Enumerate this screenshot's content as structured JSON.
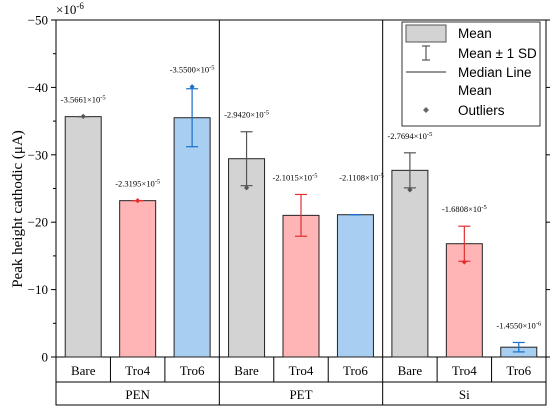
{
  "chart_data": {
    "type": "bar",
    "multiplier_label": "×10",
    "multiplier_exp": "-6",
    "ylabel": "Peak height cathodic (μA)",
    "ylim": [
      -50,
      0
    ],
    "y_axis_reversed": true,
    "yticks": [
      -50,
      -40,
      -30,
      -20,
      -10,
      0
    ],
    "colors": {
      "Bare": "#d3d3d3",
      "Tro4": "#ffb5b5",
      "Tro6": "#a8cff2"
    },
    "edge_colors": {
      "Bare": "#555555",
      "Tro4": "#e03030",
      "Tro6": "#1a6fc8"
    },
    "groups": [
      {
        "name": "PEN",
        "bars": [
          {
            "label": "Bare",
            "value": -35.661,
            "sd": 0.0,
            "outlier": -35.7,
            "annotation": "-3.5661×10",
            "annotation_exp": "-5"
          },
          {
            "label": "Tro4",
            "value": -23.195,
            "sd": 0.0,
            "outlier": -23.2,
            "annotation": "-2.3195×10",
            "annotation_exp": "-5"
          },
          {
            "label": "Tro6",
            "value": -35.5,
            "sd": 4.3,
            "outlier": -40.1,
            "annotation": "-3.5500×10",
            "annotation_exp": "-5"
          }
        ]
      },
      {
        "name": "PET",
        "bars": [
          {
            "label": "Bare",
            "value": -29.42,
            "sd": 4.0,
            "outlier": -25.1,
            "annotation": "-2.9420×10",
            "annotation_exp": "-5"
          },
          {
            "label": "Tro4",
            "value": -21.015,
            "sd": 3.1,
            "outlier": null,
            "annotation": "-2.1015×10",
            "annotation_exp": "-5"
          },
          {
            "label": "Tro6",
            "value": -21.108,
            "sd": 0.0,
            "outlier": null,
            "annotation": "-2.1108×10",
            "annotation_exp": "-5"
          }
        ]
      },
      {
        "name": "Si",
        "bars": [
          {
            "label": "Bare",
            "value": -27.694,
            "sd": 2.6,
            "outlier": -24.8,
            "annotation": "-2.7694×10",
            "annotation_exp": "-5"
          },
          {
            "label": "Tro4",
            "value": -16.808,
            "sd": 2.6,
            "outlier": -14.1,
            "annotation": "-1.6808×10",
            "annotation_exp": "-5"
          },
          {
            "label": "Tro6",
            "value": -1.455,
            "sd": 0.7,
            "outlier": null,
            "annotation": "-1.4550×10",
            "annotation_exp": "-6"
          }
        ]
      }
    ],
    "legend": {
      "placement": "top-right",
      "items": [
        {
          "symbol": "box",
          "label": "Mean"
        },
        {
          "symbol": "errorbar",
          "label": "Mean ± 1 SD"
        },
        {
          "symbol": "line",
          "label": "Median Line"
        },
        {
          "symbol": "none",
          "label": "Mean"
        },
        {
          "symbol": "diamond",
          "label": "Outliers"
        }
      ]
    }
  }
}
